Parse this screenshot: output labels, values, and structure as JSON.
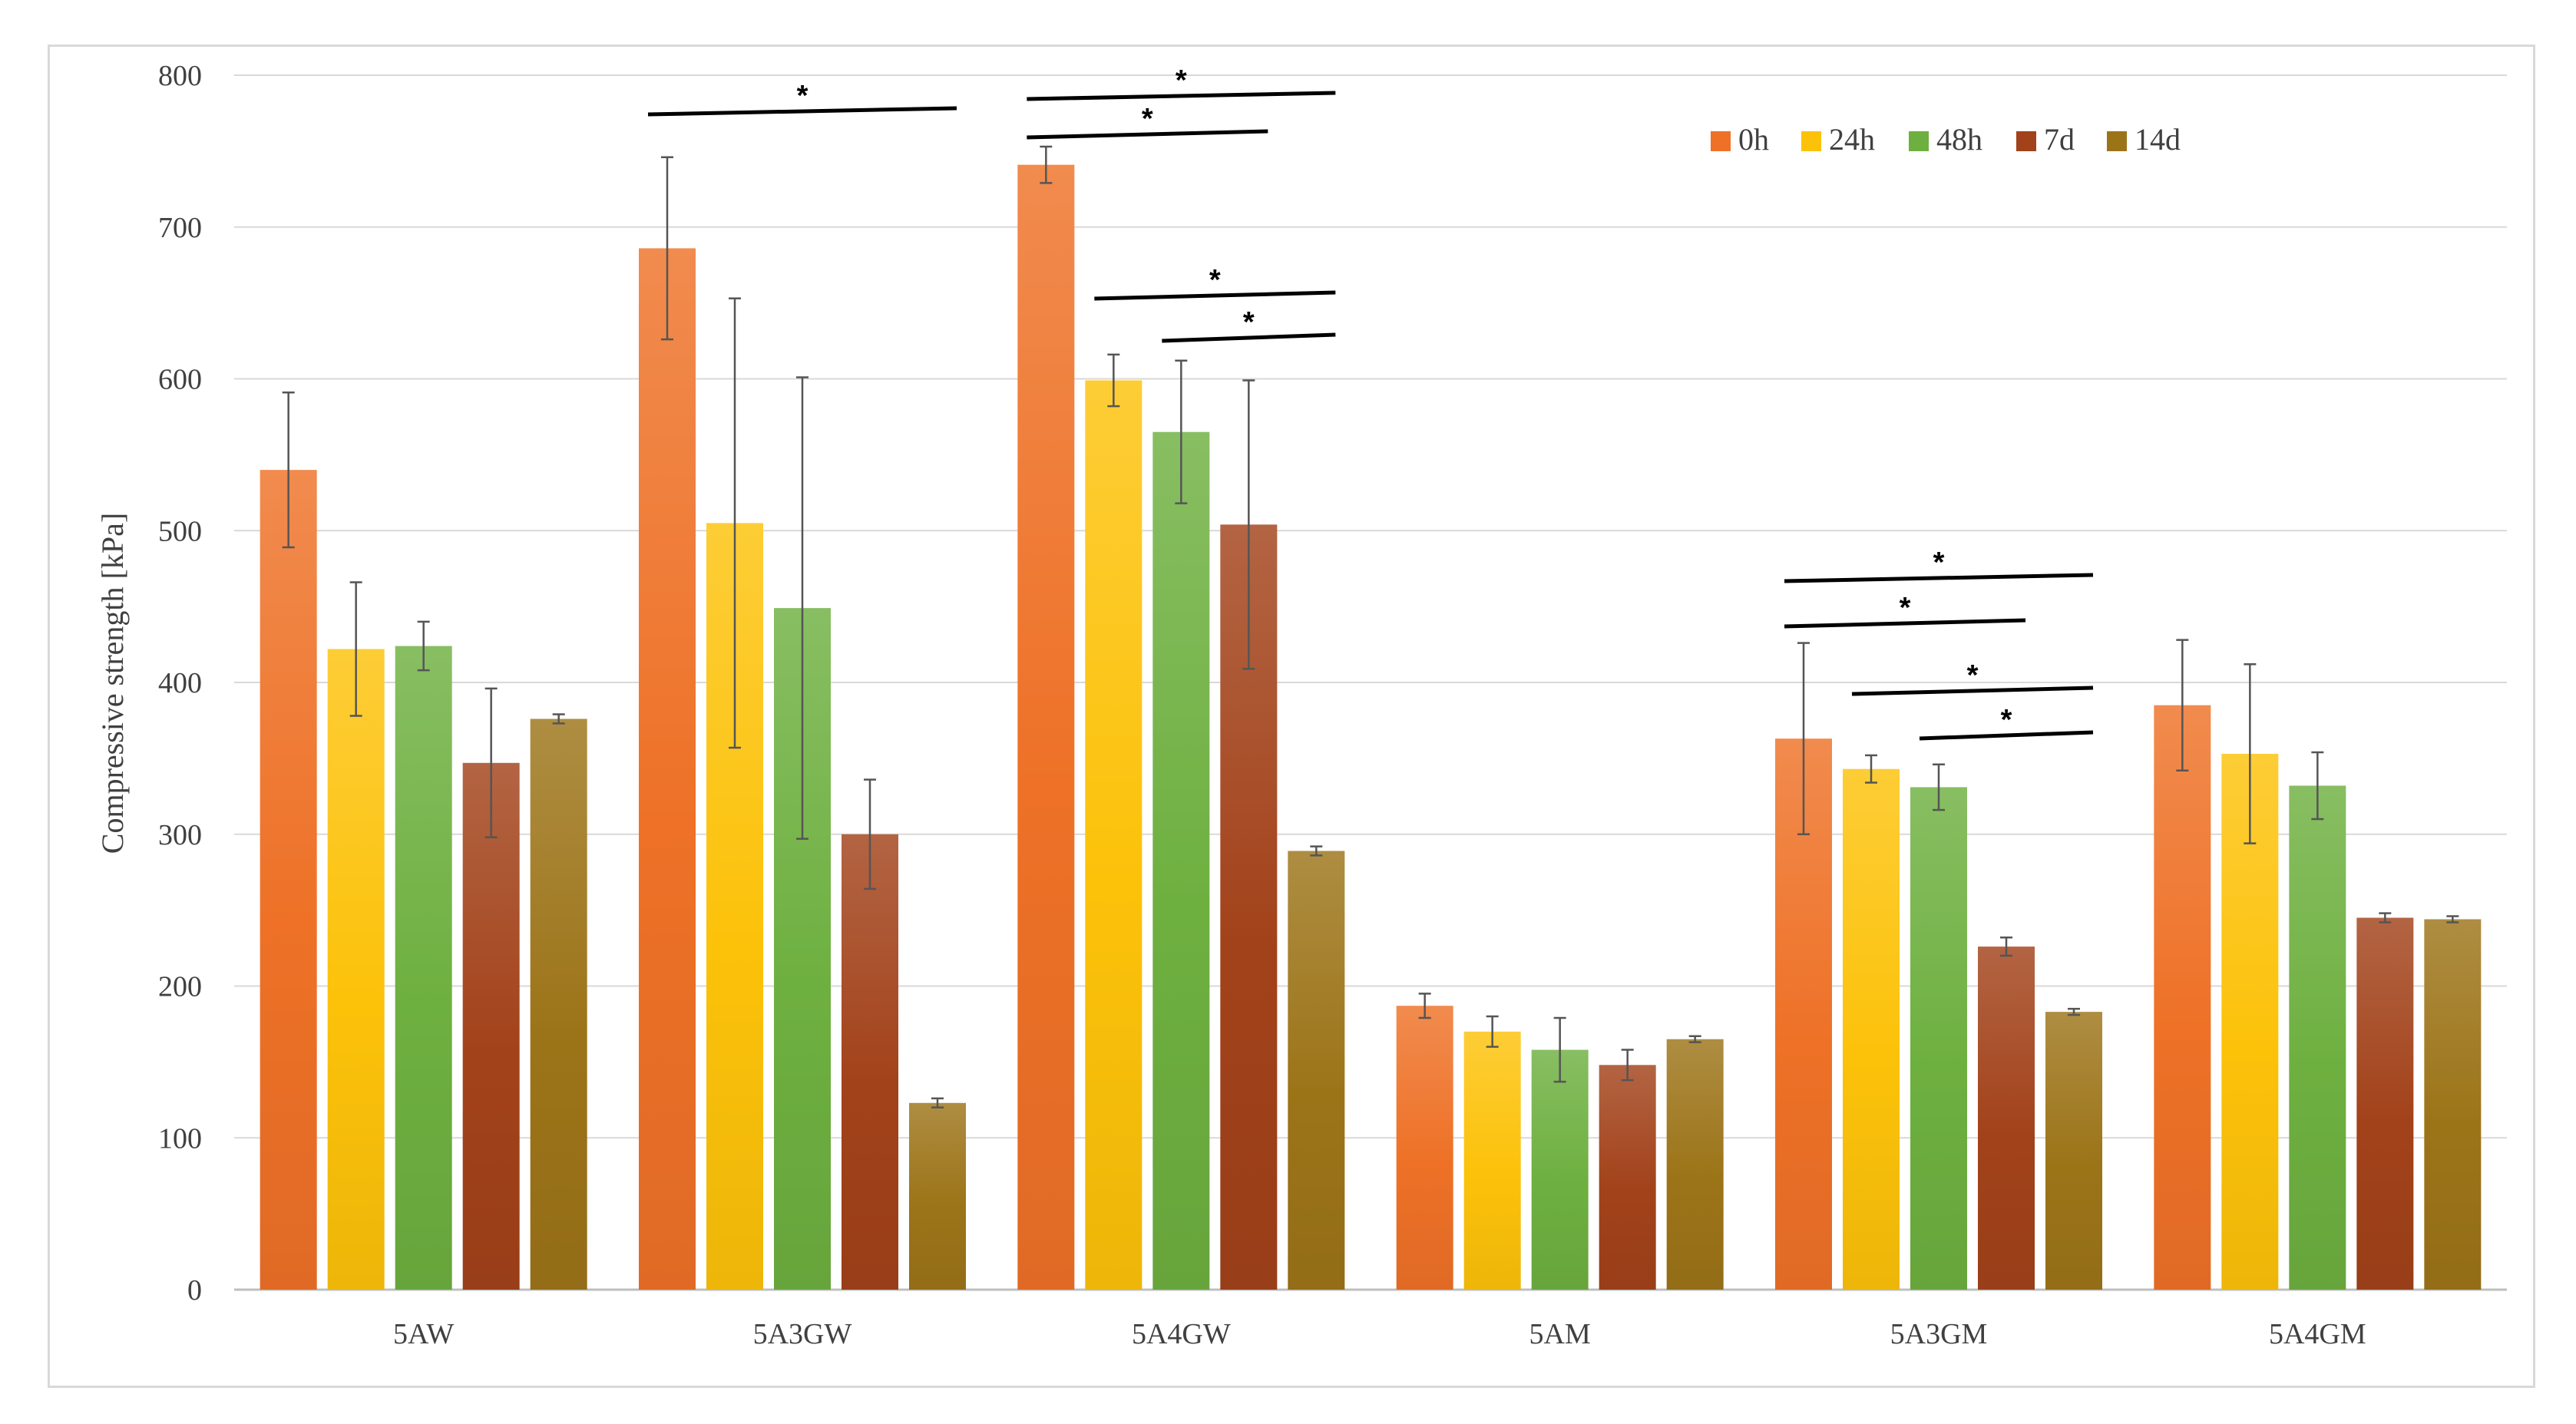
{
  "chart_data": {
    "type": "bar",
    "title": "",
    "xlabel": "",
    "ylabel": "Compressive strength [kPa]",
    "ylim": [
      0,
      800
    ],
    "yticks": [
      0,
      100,
      200,
      300,
      400,
      500,
      600,
      700,
      800
    ],
    "grid": true,
    "legend_position": "top-right",
    "categories": [
      "5AW",
      "5A3GW",
      "5A4GW",
      "5AM",
      "5A3GM",
      "5A4GM"
    ],
    "series": [
      {
        "name": "0h",
        "color": "#ee7127",
        "values": [
          540,
          686,
          741,
          187,
          363,
          385
        ],
        "errors": [
          51,
          60,
          12,
          8,
          63,
          43
        ]
      },
      {
        "name": "24h",
        "color": "#fcc20a",
        "values": [
          422,
          505,
          599,
          170,
          343,
          353
        ],
        "errors": [
          44,
          148,
          17,
          10,
          9,
          59
        ]
      },
      {
        "name": "48h",
        "color": "#6eb040",
        "values": [
          424,
          449,
          565,
          158,
          331,
          332
        ],
        "errors": [
          16,
          152,
          47,
          21,
          15,
          22
        ]
      },
      {
        "name": "7d",
        "color": "#a2421a",
        "values": [
          347,
          300,
          504,
          148,
          226,
          245
        ],
        "errors": [
          49,
          36,
          95,
          10,
          6,
          3
        ]
      },
      {
        "name": "14d",
        "color": "#9c7418",
        "values": [
          376,
          123,
          289,
          165,
          183,
          244
        ],
        "errors": [
          3,
          3,
          3,
          2,
          2,
          2
        ]
      }
    ],
    "significance": [
      {
        "category": 1,
        "from": 0,
        "to": 4,
        "label": "*",
        "level": 0
      },
      {
        "category": 2,
        "from": 0,
        "to": 4,
        "label": "*",
        "level": 0
      },
      {
        "category": 2,
        "from": 0,
        "to": 3,
        "label": "*",
        "level": 1
      },
      {
        "category": 2,
        "from": 1,
        "to": 4,
        "label": "*",
        "level": 2
      },
      {
        "category": 2,
        "from": 2,
        "to": 4,
        "label": "*",
        "level": 3
      },
      {
        "category": 4,
        "from": 0,
        "to": 4,
        "label": "*",
        "level": 0
      },
      {
        "category": 4,
        "from": 0,
        "to": 3,
        "label": "*",
        "level": 1
      },
      {
        "category": 4,
        "from": 1,
        "to": 4,
        "label": "*",
        "level": 2
      },
      {
        "category": 4,
        "from": 2,
        "to": 4,
        "label": "*",
        "level": 3
      }
    ]
  }
}
